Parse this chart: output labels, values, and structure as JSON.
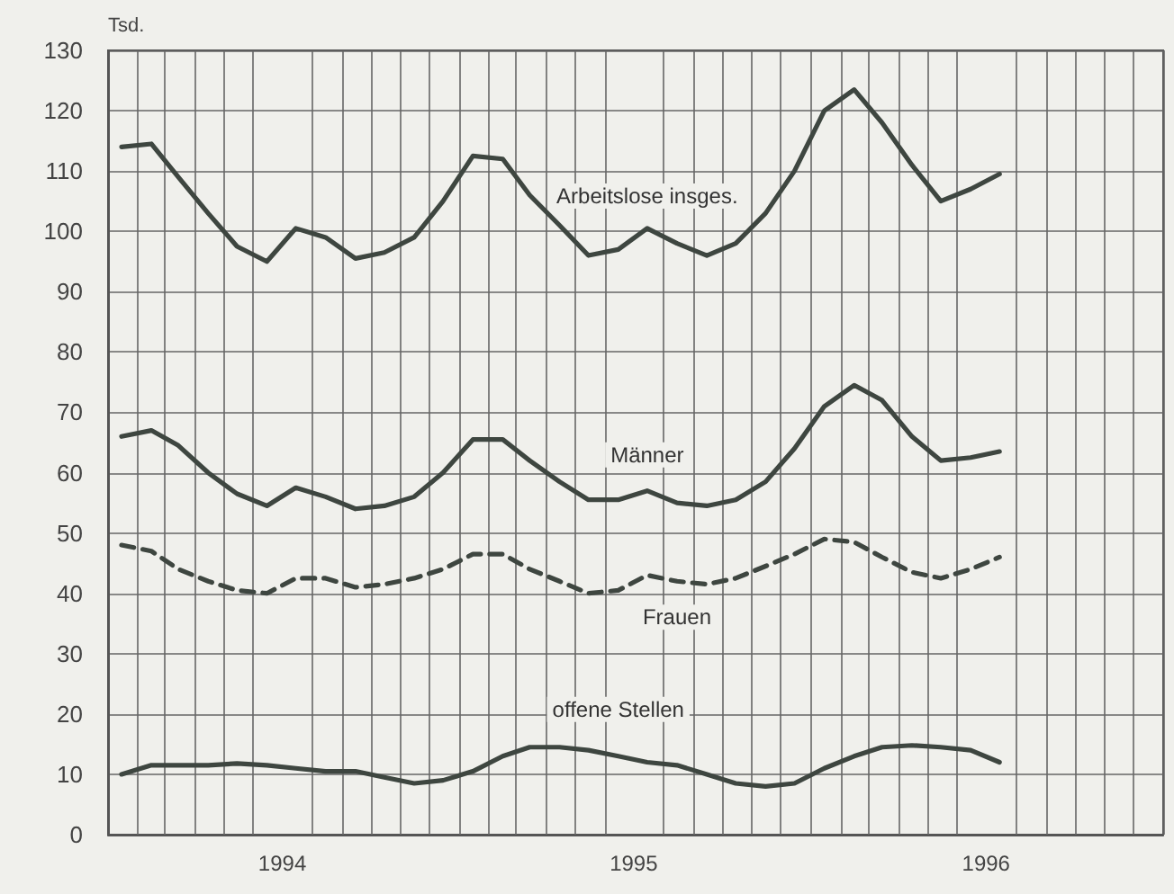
{
  "chart_data": {
    "type": "line",
    "ylabel": "Tsd.",
    "x": [
      "1994-01-15",
      "1994-02-15",
      "1994-03-15",
      "1994-04-15",
      "1994-05-15",
      "1994-06-15",
      "1994-07-15",
      "1994-08-15",
      "1994-09-15",
      "1994-10-15",
      "1994-11-15",
      "1994-12-15",
      "1995-01-15",
      "1995-02-15",
      "1995-03-15",
      "1995-04-15",
      "1995-05-15",
      "1995-06-15",
      "1995-07-15",
      "1995-08-15",
      "1995-09-15",
      "1995-10-15",
      "1995-11-15",
      "1995-12-15",
      "1996-01-15",
      "1996-02-15",
      "1996-03-15",
      "1996-04-15",
      "1996-05-15",
      "1996-06-15",
      "1996-07-15"
    ],
    "series": [
      {
        "name": "Arbeitslose insges.",
        "color": "#3e4640",
        "values": [
          114,
          114.5,
          109,
          103,
          97.5,
          95,
          100.5,
          99,
          95.5,
          96.5,
          99,
          105,
          112.5,
          112,
          106,
          101,
          96,
          97,
          100.5,
          98,
          96,
          98,
          103,
          110,
          120,
          123.5,
          118,
          111,
          105,
          107,
          109.5
        ]
      },
      {
        "name": "Männer",
        "color": "#3e4640",
        "values": [
          66,
          67,
          64.5,
          60,
          56.5,
          54.5,
          57.5,
          56,
          54,
          54.5,
          56,
          60,
          65.5,
          65.5,
          62,
          58.5,
          55.5,
          55.5,
          57,
          55,
          54.5,
          55.5,
          58.5,
          64,
          71,
          74.5,
          72,
          66,
          62,
          62.5,
          63.5
        ]
      },
      {
        "name": "Frauen",
        "color": "#3e4640",
        "line_style": "dashed",
        "values": [
          48,
          47,
          44,
          42,
          40.5,
          40,
          42.5,
          42.5,
          41,
          41.5,
          42.5,
          44,
          46.5,
          46.5,
          44,
          42,
          40,
          40.5,
          43,
          42,
          41.5,
          42.5,
          44.5,
          46.5,
          49,
          48.5,
          46,
          43.5,
          42.5,
          44,
          46
        ]
      },
      {
        "name": "offene Stellen",
        "color": "#3e4640",
        "values": [
          10,
          11.5,
          11.5,
          11.5,
          11.8,
          11.5,
          11,
          10.5,
          10.5,
          9.5,
          8.5,
          9,
          10.5,
          13,
          14.5,
          14.5,
          14,
          13,
          12,
          11.5,
          10,
          8.5,
          8,
          8.5,
          11,
          13,
          14.5,
          14.8,
          14.5,
          14,
          12
        ]
      }
    ],
    "xlim": [
      "1994-01-01",
      "1997-01-01"
    ],
    "xticks": [
      {
        "value": "1994-01-01",
        "label": null
      },
      {
        "value": "1994-02-01",
        "label": null
      },
      {
        "value": "1994-03-01",
        "label": null
      },
      {
        "value": "1994-04-01",
        "label": null
      },
      {
        "value": "1994-05-01",
        "label": null
      },
      {
        "value": "1994-06-01",
        "label": null
      },
      {
        "value": "1994-07-01",
        "label": "1994"
      },
      {
        "value": "1994-08-01",
        "label": null
      },
      {
        "value": "1994-09-01",
        "label": null
      },
      {
        "value": "1994-10-01",
        "label": null
      },
      {
        "value": "1994-11-01",
        "label": null
      },
      {
        "value": "1994-12-01",
        "label": null
      },
      {
        "value": "1995-01-01",
        "label": null
      },
      {
        "value": "1995-02-01",
        "label": null
      },
      {
        "value": "1995-03-01",
        "label": null
      },
      {
        "value": "1995-04-01",
        "label": null
      },
      {
        "value": "1995-05-01",
        "label": null
      },
      {
        "value": "1995-06-01",
        "label": null
      },
      {
        "value": "1995-07-01",
        "label": "1995"
      },
      {
        "value": "1995-08-01",
        "label": null
      },
      {
        "value": "1995-09-01",
        "label": null
      },
      {
        "value": "1995-10-01",
        "label": null
      },
      {
        "value": "1995-11-01",
        "label": null
      },
      {
        "value": "1995-12-01",
        "label": null
      },
      {
        "value": "1996-01-01",
        "label": null
      },
      {
        "value": "1996-02-01",
        "label": null
      },
      {
        "value": "1996-03-01",
        "label": null
      },
      {
        "value": "1996-04-01",
        "label": null
      },
      {
        "value": "1996-05-01",
        "label": null
      },
      {
        "value": "1996-06-01",
        "label": null
      },
      {
        "value": "1996-07-01",
        "label": "1996"
      },
      {
        "value": "1996-08-01",
        "label": null
      },
      {
        "value": "1996-09-01",
        "label": null
      },
      {
        "value": "1996-10-01",
        "label": null
      },
      {
        "value": "1996-11-01",
        "label": null
      },
      {
        "value": "1996-12-01",
        "label": null
      },
      {
        "value": "1997-01-01",
        "label": null
      }
    ],
    "ylim": [
      0,
      130
    ],
    "yticks": [
      0,
      10,
      20,
      30,
      40,
      50,
      60,
      70,
      80,
      90,
      100,
      110,
      120,
      130
    ],
    "grid": true,
    "legend": false,
    "marker": "none"
  }
}
